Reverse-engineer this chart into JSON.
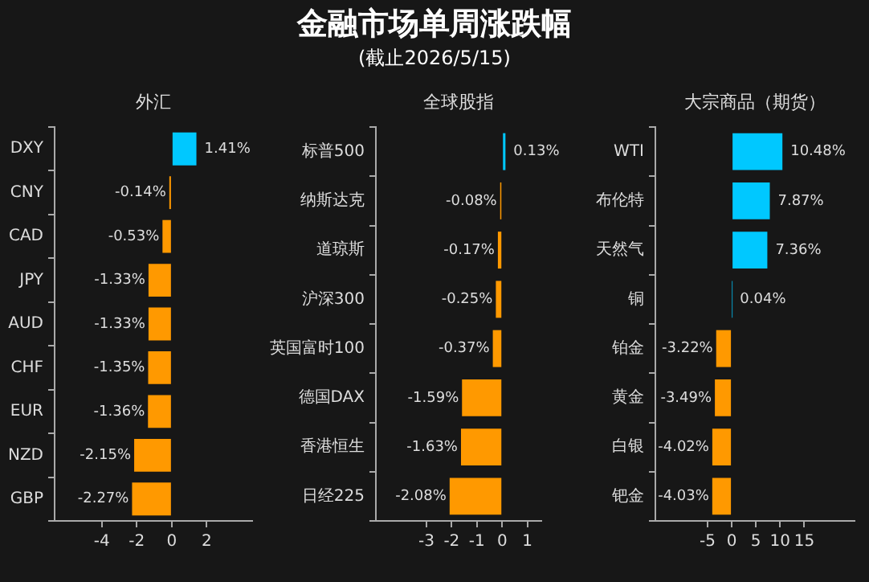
{
  "chart_data": [
    {
      "type": "other",
      "title": "金融市场单周涨跌幅",
      "subtitle": "(截止2026/5/15)"
    },
    {
      "type": "bar",
      "orientation": "horizontal",
      "annotations": [
        "外汇"
      ],
      "categories": [
        "DXY",
        "CNY",
        "CAD",
        "JPY",
        "AUD",
        "CHF",
        "EUR",
        "NZD",
        "GBP"
      ],
      "values": [
        1.41,
        -0.14,
        -0.53,
        -1.33,
        -1.33,
        -1.35,
        -1.36,
        -2.15,
        -2.27
      ],
      "value_labels": [
        "1.41%",
        "-0.14%",
        "-0.53%",
        "-1.33%",
        "-1.33%",
        "-1.35%",
        "-1.36%",
        "-2.15%",
        "-2.27%"
      ],
      "colors": [
        "#00c8ff",
        "#ff9900",
        "#ff9900",
        "#ff9900",
        "#ff9900",
        "#ff9900",
        "#ff9900",
        "#ff9900",
        "#ff9900"
      ],
      "xlim": [
        -6.7,
        4.6
      ],
      "xticks": [
        -4,
        -2,
        0,
        2
      ],
      "grid": false,
      "legend": false
    },
    {
      "type": "bar",
      "orientation": "horizontal",
      "annotations": [
        "全球股指"
      ],
      "categories": [
        "标普500",
        "纳斯达克",
        "道琼斯",
        "沪深300",
        "英国富时100",
        "德国DAX",
        "香港恒生",
        "日经225"
      ],
      "values": [
        0.13,
        -0.08,
        -0.17,
        -0.25,
        -0.37,
        -1.59,
        -1.63,
        -2.08
      ],
      "value_labels": [
        "0.13%",
        "-0.08%",
        "-0.17%",
        "-0.25%",
        "-0.37%",
        "-1.59%",
        "-1.63%",
        "-2.08%"
      ],
      "colors": [
        "#00c8ff",
        "#ff9900",
        "#ff9900",
        "#ff9900",
        "#ff9900",
        "#ff9900",
        "#ff9900",
        "#ff9900"
      ],
      "xlim": [
        -5,
        1.55
      ],
      "xticks": [
        -3,
        -2,
        -1,
        0,
        1
      ],
      "grid": false,
      "legend": false
    },
    {
      "type": "bar",
      "orientation": "horizontal",
      "annotations": [
        "大宗商品（期货）"
      ],
      "categories": [
        "WTI",
        "布伦特",
        "天然气",
        "铜",
        "铂金",
        "黄金",
        "白银",
        "钯金"
      ],
      "values": [
        10.48,
        7.87,
        7.36,
        0.04,
        -3.22,
        -3.49,
        -4.02,
        -4.03
      ],
      "value_labels": [
        "10.48%",
        "7.87%",
        "7.36%",
        "0.04%",
        "-3.22%",
        "-3.49%",
        "-4.02%",
        "-4.03%"
      ],
      "colors": [
        "#00c8ff",
        "#00c8ff",
        "#00c8ff",
        "#00c8ff",
        "#ff9900",
        "#ff9900",
        "#ff9900",
        "#ff9900"
      ],
      "xlim": [
        -15.8,
        25.4
      ],
      "xticks": [
        -5,
        0,
        5,
        10,
        15
      ],
      "grid": false,
      "legend": false
    }
  ]
}
